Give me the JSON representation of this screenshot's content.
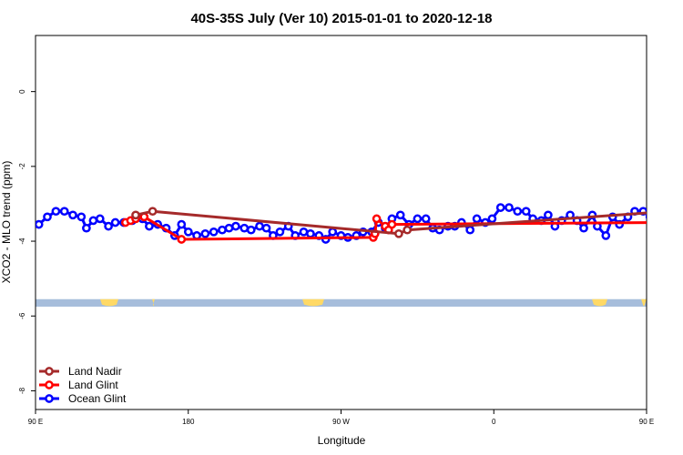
{
  "chart_data": {
    "type": "line",
    "title": "40S-35S July (Ver 10)   2015-01-01 to 2020-12-18",
    "xlabel": "Longitude",
    "ylabel": "XCO2 - MLO trend (ppm)",
    "xlim": [
      90,
      450
    ],
    "ylim": [
      -8.5,
      1.5
    ],
    "x_ticks": [
      {
        "value": 90,
        "label": "90 E"
      },
      {
        "value": 180,
        "label": "180"
      },
      {
        "value": 270,
        "label": "90 W"
      },
      {
        "value": 360,
        "label": "0"
      },
      {
        "value": 450,
        "label": "90 E"
      },
      {
        "value": 540,
        "label": "180"
      }
    ],
    "y_ticks": [
      0,
      -2,
      -4,
      -6,
      -8
    ],
    "legend_position": "bottom-left",
    "grid": false,
    "series": [
      {
        "name": "Land Nadir",
        "color": "#a52a2a",
        "points": [
          [
            149,
            -3.3
          ],
          [
            159,
            -3.2
          ],
          [
            304,
            -3.8
          ],
          [
            309,
            -3.7
          ],
          [
            464,
            -3.2
          ]
        ]
      },
      {
        "name": "Land Glint",
        "color": "#ff0000",
        "points": [
          [
            143,
            -3.5
          ],
          [
            146,
            -3.45
          ],
          [
            149,
            -3.4
          ],
          [
            154,
            -3.35
          ],
          [
            176,
            -3.95
          ],
          [
            289,
            -3.9
          ],
          [
            290,
            -3.8
          ],
          [
            291,
            -3.4
          ],
          [
            296,
            -3.6
          ],
          [
            298,
            -3.7
          ],
          [
            300,
            -3.55
          ],
          [
            455,
            -3.5
          ],
          [
            460,
            -3.4
          ],
          [
            495,
            -3.95
          ]
        ]
      },
      {
        "name": "Ocean Glint",
        "color": "#0000ff",
        "points": [
          [
            92,
            -3.55
          ],
          [
            97,
            -3.35
          ],
          [
            102,
            -3.2
          ],
          [
            107,
            -3.2
          ],
          [
            112,
            -3.3
          ],
          [
            117,
            -3.35
          ],
          [
            120,
            -3.65
          ],
          [
            124,
            -3.45
          ],
          [
            128,
            -3.4
          ],
          [
            133,
            -3.6
          ],
          [
            137,
            -3.5
          ],
          [
            142,
            -3.5
          ],
          [
            147,
            -3.45
          ],
          [
            153,
            -3.4
          ],
          [
            157,
            -3.6
          ],
          [
            162,
            -3.55
          ],
          [
            167,
            -3.65
          ],
          [
            172,
            -3.85
          ],
          [
            176,
            -3.55
          ],
          [
            180,
            -3.75
          ],
          [
            185,
            -3.85
          ],
          [
            190,
            -3.8
          ],
          [
            195,
            -3.75
          ],
          [
            200,
            -3.7
          ],
          [
            204,
            -3.65
          ],
          [
            208,
            -3.6
          ],
          [
            213,
            -3.65
          ],
          [
            217,
            -3.7
          ],
          [
            222,
            -3.6
          ],
          [
            226,
            -3.65
          ],
          [
            230,
            -3.85
          ],
          [
            234,
            -3.75
          ],
          [
            239,
            -3.6
          ],
          [
            243,
            -3.85
          ],
          [
            248,
            -3.75
          ],
          [
            252,
            -3.8
          ],
          [
            257,
            -3.85
          ],
          [
            261,
            -3.95
          ],
          [
            265,
            -3.75
          ],
          [
            270,
            -3.85
          ],
          [
            274,
            -3.9
          ],
          [
            279,
            -3.85
          ],
          [
            283,
            -3.75
          ],
          [
            288,
            -3.75
          ],
          [
            292,
            -3.5
          ],
          [
            296,
            -3.65
          ],
          [
            300,
            -3.4
          ],
          [
            305,
            -3.3
          ],
          [
            310,
            -3.55
          ],
          [
            315,
            -3.4
          ],
          [
            320,
            -3.4
          ],
          [
            324,
            -3.65
          ],
          [
            328,
            -3.7
          ],
          [
            333,
            -3.6
          ],
          [
            337,
            -3.6
          ],
          [
            341,
            -3.5
          ],
          [
            346,
            -3.7
          ],
          [
            350,
            -3.4
          ],
          [
            355,
            -3.5
          ],
          [
            359,
            -3.4
          ],
          [
            364,
            -3.1
          ],
          [
            369,
            -3.1
          ],
          [
            374,
            -3.2
          ],
          [
            379,
            -3.2
          ],
          [
            383,
            -3.4
          ],
          [
            388,
            -3.45
          ],
          [
            392,
            -3.3
          ],
          [
            396,
            -3.6
          ],
          [
            400,
            -3.45
          ],
          [
            405,
            -3.3
          ],
          [
            409,
            -3.45
          ],
          [
            413,
            -3.65
          ],
          [
            418,
            -3.3
          ],
          [
            421,
            -3.6
          ],
          [
            426,
            -3.85
          ],
          [
            430,
            -3.35
          ],
          [
            434,
            -3.55
          ],
          [
            439,
            -3.35
          ],
          [
            443,
            -3.2
          ],
          [
            448,
            -3.2
          ],
          [
            452,
            -3.35
          ],
          [
            456,
            -3.35
          ],
          [
            460,
            -3.65
          ],
          [
            464,
            -3.45
          ],
          [
            469,
            -3.4
          ],
          [
            473,
            -3.65
          ],
          [
            477,
            -3.55
          ],
          [
            481,
            -3.4
          ],
          [
            485,
            -3.6
          ],
          [
            490,
            -3.55
          ],
          [
            495,
            -3.85
          ],
          [
            499,
            -3.55
          ]
        ]
      }
    ],
    "land_band": {
      "y_range": [
        -5.55,
        -5.75
      ],
      "ocean_color": "#a6bddb",
      "land_color": "#ffd966"
    }
  }
}
